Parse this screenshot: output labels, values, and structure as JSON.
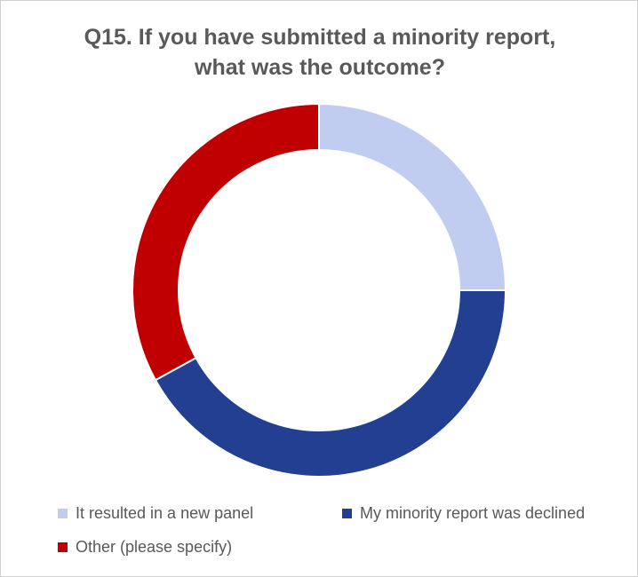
{
  "chart_data": {
    "type": "pie",
    "donut": true,
    "title_lines": [
      "Q15. If you have submitted a minority report,",
      "what was the outcome?"
    ],
    "categories": [
      "It resulted in a new panel",
      "My minority report was declined",
      "Other (please specify)"
    ],
    "values": [
      25,
      42,
      33
    ],
    "colors": [
      "#c0cdf0",
      "#233f91",
      "#c00000"
    ],
    "legend_position": "bottom"
  }
}
